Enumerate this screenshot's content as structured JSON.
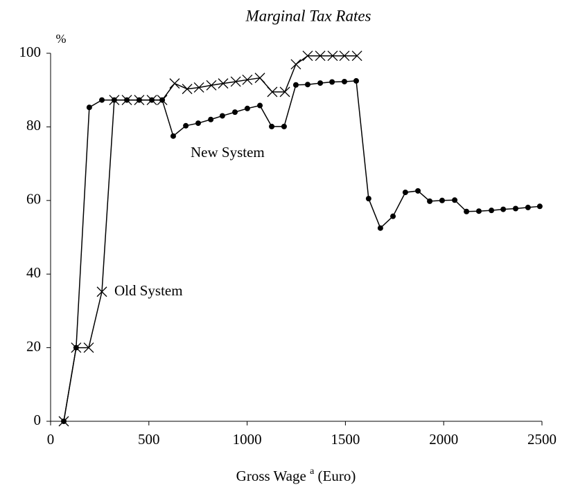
{
  "chart_data": {
    "type": "line",
    "title": "Marginal Tax Rates",
    "y_unit": "%",
    "xlabel": "Gross Wage",
    "xlabel_superscript": "a",
    "xlabel_unit": "(Euro)",
    "xlim": [
      0,
      2500
    ],
    "xticks": [
      0,
      500,
      1000,
      1500,
      2000,
      2500
    ],
    "ylim": [
      0,
      100
    ],
    "yticks": [
      0,
      20,
      40,
      60,
      80,
      100
    ],
    "grid": false,
    "series": [
      {
        "name": "New System",
        "color": "#000000",
        "marker": "dot",
        "x": [
          67,
          130,
          197,
          261,
          324,
          388,
          451,
          515,
          568,
          624,
          688,
          751,
          815,
          874,
          938,
          1001,
          1065,
          1125,
          1188,
          1248,
          1308,
          1372,
          1432,
          1495,
          1555,
          1618,
          1678,
          1742,
          1805,
          1869,
          1929,
          1992,
          2056,
          2116,
          2179,
          2243,
          2303,
          2366,
          2429,
          2489
        ],
        "values": [
          0,
          20,
          85.3,
          87.3,
          87.3,
          87.3,
          87.3,
          87.3,
          87.3,
          77.5,
          80.3,
          81,
          82,
          83,
          84,
          85,
          85.8,
          80.1,
          80.1,
          91.4,
          91.5,
          91.9,
          92.2,
          92.3,
          92.5,
          60.5,
          52.5,
          55.7,
          62.2,
          62.6,
          59.8,
          60,
          60.1,
          57,
          57.1,
          57.3,
          57.6,
          57.8,
          58.1,
          58.4
        ]
      },
      {
        "name": "Old System",
        "color": "#000000",
        "marker": "cross",
        "x": [
          67,
          130,
          194,
          261,
          324,
          388,
          451,
          515,
          568,
          631,
          695,
          755,
          818,
          878,
          942,
          1001,
          1065,
          1128,
          1192,
          1248,
          1308,
          1372,
          1435,
          1495,
          1559
        ],
        "values": [
          0,
          20,
          20,
          35.2,
          87.3,
          87.3,
          87.3,
          87.3,
          87.3,
          91.8,
          90.3,
          90.7,
          91.3,
          91.8,
          92.3,
          92.8,
          93.3,
          89.5,
          89.5,
          97,
          99.3,
          99.3,
          99.3,
          99.3,
          99.3
        ]
      }
    ]
  }
}
